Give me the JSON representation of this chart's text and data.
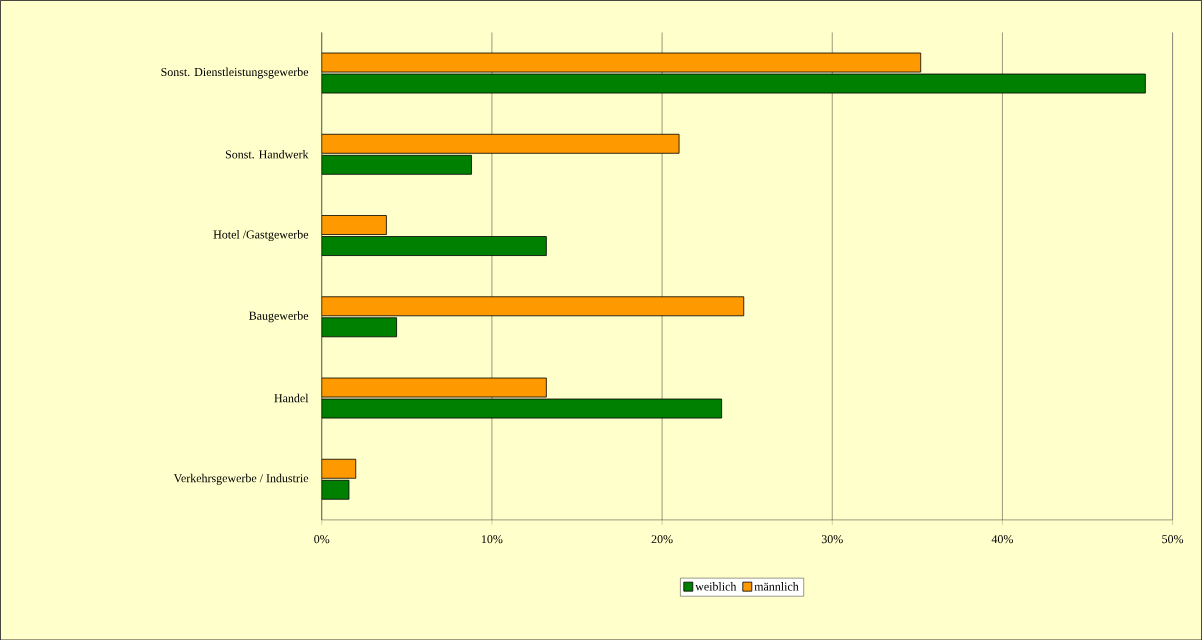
{
  "chart_data": {
    "type": "bar",
    "orientation": "horizontal",
    "categories": [
      "Sonst. Dienstleistungsgewerbe",
      "Sonst. Handwerk",
      "Hotel /Gastgewerbe",
      "Baugewerbe",
      "Handel",
      "Verkehrsgewerbe / Industrie"
    ],
    "series": [
      {
        "name": "weiblich",
        "color": "#008000",
        "values": [
          48.4,
          8.8,
          13.2,
          4.4,
          23.5,
          1.6
        ]
      },
      {
        "name": "männlich",
        "color": "#ff9900",
        "values": [
          35.2,
          21.0,
          3.8,
          24.8,
          13.2,
          2.0
        ]
      }
    ],
    "xlim": [
      0,
      50
    ],
    "xticks": [
      {
        "value": 0,
        "label": "0%"
      },
      {
        "value": 10,
        "label": "10%"
      },
      {
        "value": 20,
        "label": "20%"
      },
      {
        "value": 30,
        "label": "30%"
      },
      {
        "value": 40,
        "label": "40%"
      },
      {
        "value": 50,
        "label": "50%"
      }
    ],
    "grid": "x",
    "legend": "bottom"
  }
}
